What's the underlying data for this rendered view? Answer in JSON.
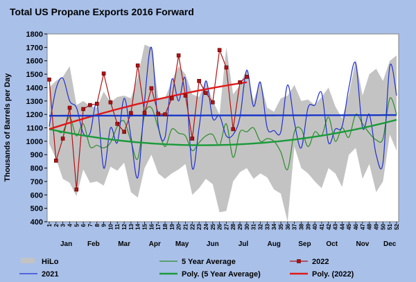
{
  "chart_data": {
    "type": "line",
    "title": "Total US Propane Exports 2016 Forward",
    "ylabel": "Thousands of Barrels per Day",
    "xlabel": "",
    "ylim": [
      400,
      1800
    ],
    "xlim": [
      1,
      52
    ],
    "y_ticks": [
      400,
      500,
      600,
      700,
      800,
      900,
      1000,
      1100,
      1200,
      1300,
      1400,
      1500,
      1600,
      1700,
      1800
    ],
    "x_ticks": [
      1,
      2,
      3,
      4,
      5,
      6,
      7,
      8,
      9,
      10,
      11,
      12,
      13,
      14,
      15,
      16,
      17,
      18,
      19,
      20,
      21,
      22,
      23,
      24,
      25,
      26,
      27,
      28,
      29,
      30,
      31,
      32,
      33,
      34,
      35,
      36,
      37,
      38,
      39,
      40,
      41,
      42,
      43,
      44,
      45,
      46,
      47,
      48,
      49,
      50,
      51,
      52
    ],
    "months": [
      {
        "label": "Jan",
        "week": 3.5
      },
      {
        "label": "Feb",
        "week": 7.5
      },
      {
        "label": "Mar",
        "week": 12
      },
      {
        "label": "Apr",
        "week": 16.5
      },
      {
        "label": "May",
        "week": 20.5
      },
      {
        "label": "Jun",
        "week": 25
      },
      {
        "label": "Jul",
        "week": 29.5
      },
      {
        "label": "Aug",
        "week": 34
      },
      {
        "label": "Sep",
        "week": 38.5
      },
      {
        "label": "Oct",
        "week": 42.5
      },
      {
        "label": "Nov",
        "week": 47
      },
      {
        "label": "Dec",
        "week": 51
      }
    ],
    "grid": false,
    "legend_placement": "bottom",
    "hilo": {
      "x": [
        1,
        2,
        3,
        4,
        5,
        6,
        7,
        8,
        9,
        10,
        11,
        12,
        13,
        14,
        15,
        16,
        17,
        18,
        19,
        20,
        21,
        22,
        23,
        24,
        25,
        26,
        27,
        28,
        29,
        30,
        31,
        32,
        33,
        34,
        35,
        36,
        37,
        38,
        39,
        40,
        41,
        42,
        43,
        44,
        45,
        46,
        47,
        48,
        49,
        50,
        51,
        52
      ],
      "high": [
        1400,
        1450,
        1480,
        1560,
        1270,
        1300,
        1260,
        1250,
        1370,
        1290,
        1330,
        1340,
        1320,
        1480,
        1720,
        1700,
        1320,
        1320,
        1450,
        1560,
        1500,
        1350,
        1330,
        1450,
        1300,
        1200,
        1700,
        1350,
        1420,
        1540,
        1300,
        1450,
        1250,
        1220,
        1320,
        1340,
        1420,
        1300,
        1310,
        1270,
        1330,
        1400,
        1260,
        1170,
        1350,
        1610,
        1340,
        1500,
        1540,
        1450,
        1600,
        1640
      ],
      "low": [
        980,
        870,
        720,
        690,
        590,
        790,
        690,
        700,
        670,
        810,
        780,
        840,
        620,
        580,
        800,
        900,
        760,
        720,
        760,
        790,
        830,
        600,
        650,
        720,
        680,
        470,
        480,
        700,
        770,
        800,
        720,
        760,
        730,
        640,
        610,
        400,
        960,
        800,
        760,
        700,
        650,
        800,
        760,
        660,
        900,
        950,
        720,
        830,
        620,
        700,
        1050,
        930
      ]
    },
    "series": [
      {
        "name": "5 Year Average",
        "color": "#2b8b2b",
        "x": [
          1,
          2,
          3,
          4,
          5,
          6,
          7,
          8,
          9,
          10,
          11,
          12,
          13,
          14,
          15,
          16,
          17,
          18,
          19,
          20,
          21,
          22,
          23,
          24,
          25,
          26,
          27,
          28,
          29,
          30,
          31,
          32,
          33,
          34,
          35,
          36,
          37,
          38,
          39,
          40,
          41,
          42,
          43,
          44,
          45,
          46,
          47,
          48,
          49,
          50,
          51,
          52
        ],
        "values": [
          1090,
          1080,
          1070,
          1180,
          1040,
          1130,
          960,
          970,
          950,
          990,
          1110,
          1150,
          1000,
          870,
          1200,
          1250,
          1100,
          960,
          1090,
          1060,
          1040,
          930,
          990,
          1040,
          1050,
          970,
          1130,
          880,
          1070,
          1070,
          1100,
          1000,
          1020,
          1000,
          920,
          790,
          1070,
          1090,
          960,
          1070,
          1040,
          1180,
          1000,
          1100,
          1030,
          1200,
          1130,
          1060,
          1010,
          1020,
          1320,
          1200
        ]
      },
      {
        "name": "2021",
        "color": "#1f2fd0",
        "x": [
          1,
          2,
          3,
          4,
          5,
          6,
          7,
          8,
          9,
          10,
          11,
          12,
          13,
          14,
          15,
          16,
          17,
          18,
          19,
          20,
          21,
          22,
          23,
          24,
          25,
          26,
          27,
          28,
          29,
          30,
          31,
          32,
          33,
          34,
          35,
          36,
          37,
          38,
          39,
          40,
          41,
          42,
          43,
          44,
          45,
          46,
          47,
          48,
          49,
          50,
          51,
          52
        ],
        "values": [
          1110,
          1390,
          1470,
          1300,
          1250,
          1060,
          1060,
          1280,
          800,
          1100,
          990,
          1320,
          1030,
          730,
          1300,
          1700,
          1120,
          1030,
          1460,
          1300,
          1460,
          800,
          1100,
          1450,
          1170,
          1190,
          1040,
          1050,
          1180,
          1530,
          1260,
          1440,
          1100,
          1080,
          1070,
          1420,
          1140,
          950,
          1250,
          1270,
          1360,
          990,
          1090,
          1110,
          1400,
          1580,
          1100,
          1200,
          900,
          840,
          1560,
          1340
        ]
      },
      {
        "name": "2022",
        "color": "#b01212",
        "marker": "square",
        "x": [
          1,
          2,
          3,
          4,
          5,
          6,
          7,
          8,
          9,
          10,
          11,
          12,
          13,
          14,
          15,
          16,
          17,
          18,
          19,
          20,
          21,
          22,
          23,
          24,
          25,
          26,
          27,
          28,
          29,
          30
        ],
        "values": [
          1460,
          855,
          1020,
          1250,
          640,
          1240,
          1270,
          1280,
          1505,
          1290,
          1130,
          1070,
          1210,
          1565,
          1210,
          1395,
          1205,
          1200,
          1320,
          1640,
          1340,
          1020,
          1450,
          1360,
          1290,
          1680,
          1550,
          1090,
          1440,
          1480
        ]
      }
    ],
    "trendlines": [
      {
        "name": "Poly. (5 Year Average)",
        "color": "#1a9a3a",
        "x": [
          1,
          52
        ],
        "values": [
          1090,
          1160
        ],
        "vertex": [
          28,
          975
        ]
      },
      {
        "name": "Poly. (2022)",
        "color": "#e01818",
        "x": [
          1,
          30
        ],
        "values": [
          1090,
          1440
        ],
        "mid": [
          15,
          1290
        ]
      },
      {
        "name": "",
        "color": "#1636c8",
        "x": [
          1,
          52
        ],
        "values": [
          1190,
          1195
        ]
      }
    ],
    "legend": [
      {
        "label": "HiLo",
        "kind": "area"
      },
      {
        "label": "5 Year Average",
        "kind": "line"
      },
      {
        "label": "2022",
        "kind": "marker-line"
      },
      {
        "label": "2021",
        "kind": "line"
      },
      {
        "label": "Poly. (5 Year Average)",
        "kind": "poly-green"
      },
      {
        "label": "Poly. (2022)",
        "kind": "poly-red"
      }
    ]
  }
}
